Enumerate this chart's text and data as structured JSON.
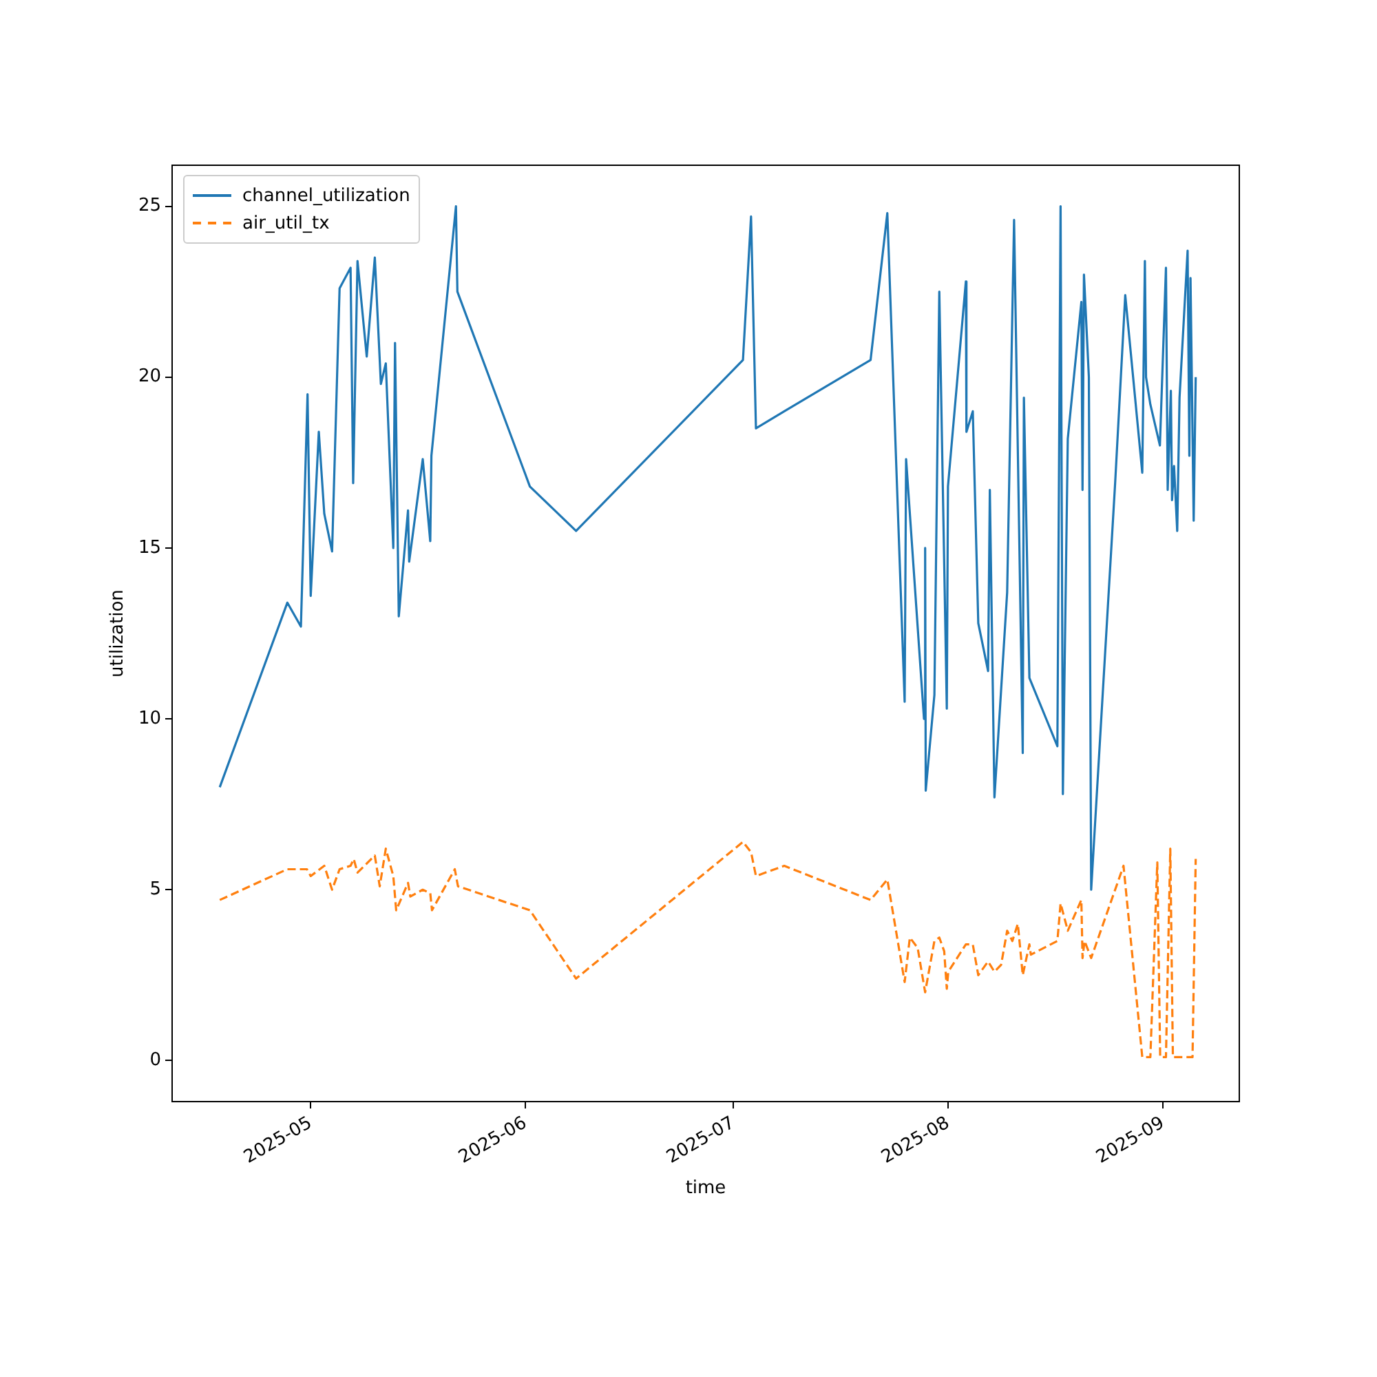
{
  "chart_data": {
    "type": "line",
    "xlabel": "time",
    "ylabel": "utilization",
    "xlim": [
      "2025-04-11",
      "2025-09-12"
    ],
    "ylim": [
      -1.2,
      26.2
    ],
    "xticks": [
      {
        "value": "2025-05-01",
        "label": "2025-05"
      },
      {
        "value": "2025-06-01",
        "label": "2025-06"
      },
      {
        "value": "2025-07-01",
        "label": "2025-07"
      },
      {
        "value": "2025-08-01",
        "label": "2025-08"
      },
      {
        "value": "2025-09-01",
        "label": "2025-09"
      }
    ],
    "yticks": [
      0,
      5,
      10,
      15,
      20,
      25
    ],
    "grid": false,
    "legend": "top left",
    "marker": "none",
    "series": [
      {
        "name": "channel_utilization",
        "color": "#1f77b4",
        "line_style": "solid",
        "x": [
          "2025-04-17T21:00",
          "2025-04-27T15:00",
          "2025-04-29T14:00",
          "2025-04-30T13:00",
          "2025-05-01T00:00",
          "2025-05-02T04:00",
          "2025-05-02T23:00",
          "2025-05-04T02:00",
          "2025-05-05T04:00",
          "2025-05-06T18:00",
          "2025-05-07T03:00",
          "2025-05-07T18:00",
          "2025-05-09T02:00",
          "2025-05-10T06:00",
          "2025-05-11T03:00",
          "2025-05-11T20:00",
          "2025-05-12T22:00",
          "2025-05-13T04:00",
          "2025-05-13T17:00",
          "2025-05-15T01:00",
          "2025-05-15T05:00",
          "2025-05-17T04:00",
          "2025-05-18T06:00",
          "2025-05-18T10:00",
          "2025-05-21T23:00",
          "2025-05-22T04:00",
          "2025-06-01T15:00",
          "2025-06-08T07:00",
          "2025-07-02T09:00",
          "2025-07-03T13:00",
          "2025-07-04T06:00",
          "2025-07-08T08:00",
          "2025-07-20T19:00",
          "2025-07-23T05:00",
          "2025-07-25T17:00",
          "2025-07-25T22:00",
          "2025-07-28T12:00",
          "2025-07-28T16:00",
          "2025-07-28T18:00",
          "2025-07-30T00:00",
          "2025-07-30T17:00",
          "2025-07-31T19:00",
          "2025-07-31T23:00",
          "2025-08-03T13:00",
          "2025-08-03T15:00",
          "2025-08-04T13:00",
          "2025-08-05T08:00",
          "2025-08-06T18:00",
          "2025-08-07T00:00",
          "2025-08-07T16:00",
          "2025-08-09T12:00",
          "2025-08-10T12:00",
          "2025-08-11T18:00",
          "2025-08-11T22:00",
          "2025-08-12T17:00",
          "2025-08-16T18:00",
          "2025-08-17T05:00",
          "2025-08-17T13:00",
          "2025-08-18T06:00",
          "2025-08-20T05:00",
          "2025-08-20T09:00",
          "2025-08-20T14:00",
          "2025-08-21T07:00",
          "2025-08-21T15:00",
          "2025-08-25T02:00",
          "2025-08-26T13:00",
          "2025-08-29T00:00",
          "2025-08-29T09:00",
          "2025-08-29T13:00",
          "2025-08-30T04:00",
          "2025-08-31T13:00",
          "2025-09-01T10:00",
          "2025-09-01T16:00",
          "2025-09-02T03:00",
          "2025-09-02T07:00",
          "2025-09-02T14:00",
          "2025-09-03T01:00",
          "2025-09-03T09:00",
          "2025-09-04T13:00",
          "2025-09-04T19:00",
          "2025-09-04T23:00",
          "2025-09-05T10:00",
          "2025-09-05T17:00"
        ],
        "values": [
          8.0,
          13.4,
          12.7,
          19.5,
          13.6,
          18.4,
          16.0,
          14.9,
          22.6,
          23.2,
          16.9,
          23.4,
          20.6,
          23.5,
          19.8,
          20.4,
          15.0,
          21.0,
          13.0,
          16.1,
          14.6,
          17.6,
          15.2,
          17.7,
          25.0,
          22.5,
          16.8,
          15.5,
          20.5,
          24.7,
          18.5,
          19.0,
          20.5,
          24.8,
          10.5,
          17.6,
          10.0,
          15.0,
          7.9,
          10.7,
          22.5,
          10.3,
          16.8,
          22.8,
          18.4,
          19.0,
          12.8,
          11.4,
          16.7,
          7.7,
          13.7,
          24.6,
          9.0,
          19.4,
          11.2,
          9.2,
          25.0,
          7.8,
          18.2,
          22.2,
          16.7,
          23.0,
          20.0,
          5.0,
          16.9,
          22.4,
          17.2,
          23.4,
          20.0,
          19.2,
          18.0,
          23.2,
          16.7,
          19.6,
          16.4,
          17.4,
          15.5,
          19.4,
          23.7,
          17.7,
          22.9,
          15.8,
          20.0
        ]
      },
      {
        "name": "air_util_tx",
        "color": "#ff7f0e",
        "line_style": "dashed",
        "x": [
          "2025-04-17T21:00",
          "2025-04-27T15:00",
          "2025-04-30T11:00",
          "2025-05-01T00:00",
          "2025-05-02T23:00",
          "2025-05-04T02:00",
          "2025-05-05T04:00",
          "2025-05-06T18:00",
          "2025-05-07T05:00",
          "2025-05-07T18:00",
          "2025-05-10T06:00",
          "2025-05-10T23:00",
          "2025-05-11T20:00",
          "2025-05-12T22:00",
          "2025-05-13T08:00",
          "2025-05-15T01:00",
          "2025-05-15T09:00",
          "2025-05-17T04:00",
          "2025-05-18T06:00",
          "2025-05-18T12:00",
          "2025-05-21T19:00",
          "2025-05-22T06:00",
          "2025-06-01T15:00",
          "2025-06-08T07:00",
          "2025-07-02T09:00",
          "2025-07-03T13:00",
          "2025-07-04T06:00",
          "2025-07-08T08:00",
          "2025-07-20T19:00",
          "2025-07-23T05:00",
          "2025-07-25T17:00",
          "2025-07-26T11:00",
          "2025-07-27T14:00",
          "2025-07-28T16:00",
          "2025-07-30T00:00",
          "2025-07-30T17:00",
          "2025-07-31T10:00",
          "2025-07-31T19:00",
          "2025-08-01T00:00",
          "2025-08-03T13:00",
          "2025-08-04T13:00",
          "2025-08-05T08:00",
          "2025-08-06T18:00",
          "2025-08-07T16:00",
          "2025-08-08T15:00",
          "2025-08-09T12:00",
          "2025-08-10T06:00",
          "2025-08-11T01:00",
          "2025-08-11T18:00",
          "2025-08-12T17:00",
          "2025-08-12T22:00",
          "2025-08-16T18:00",
          "2025-08-17T05:00",
          "2025-08-18T06:00",
          "2025-08-20T05:00",
          "2025-08-20T09:00",
          "2025-08-20T16:00",
          "2025-08-21T15:00",
          "2025-08-26T07:00",
          "2025-08-29T00:00",
          "2025-08-30T04:00",
          "2025-08-31T04:00",
          "2025-08-31T14:00",
          "2025-09-01T10:00",
          "2025-09-02T01:00",
          "2025-09-02T10:00",
          "2025-09-05T06:00",
          "2025-09-05T17:00"
        ],
        "values": [
          4.7,
          5.6,
          5.6,
          5.4,
          5.7,
          5.0,
          5.6,
          5.7,
          5.9,
          5.5,
          6.0,
          5.1,
          6.2,
          5.4,
          4.4,
          5.2,
          4.8,
          5.0,
          4.9,
          4.4,
          5.6,
          5.1,
          4.4,
          2.4,
          6.4,
          6.1,
          5.4,
          5.7,
          4.7,
          5.3,
          2.3,
          3.6,
          3.3,
          2.0,
          3.5,
          3.6,
          3.2,
          2.1,
          2.6,
          3.4,
          3.4,
          2.5,
          2.9,
          2.6,
          2.8,
          3.8,
          3.5,
          4.0,
          2.5,
          3.4,
          3.1,
          3.5,
          4.6,
          3.8,
          4.7,
          3.0,
          3.5,
          3.0,
          5.7,
          0.1,
          0.1,
          5.8,
          0.1,
          0.1,
          6.2,
          0.1,
          0.1,
          5.9
        ]
      }
    ]
  }
}
